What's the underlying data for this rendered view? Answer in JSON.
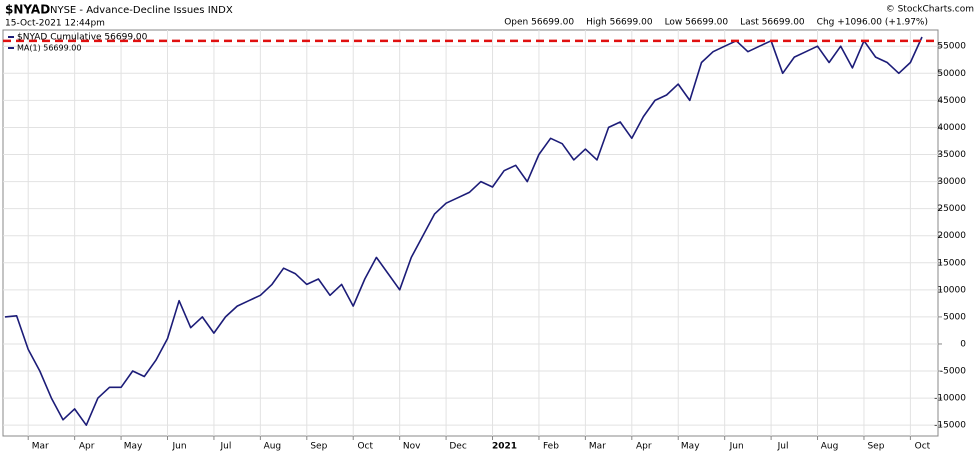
{
  "chart_data": {
    "type": "line",
    "symbol": "$NYAD",
    "title": "NYSE - Advance-Decline Issues INDX",
    "date": "15-Oct-2021 12:44pm",
    "quote": [
      "Open 56699.00",
      "High 56699.00",
      "Low 56699.00",
      "Last 56699.00",
      "Chg +1096.00 (+1.97%)"
    ],
    "credit": "© StockCharts.com",
    "legend_extra": "MA(1) 56699.00",
    "categories": [
      null,
      null,
      "Mar",
      null,
      null,
      null,
      "Apr",
      null,
      null,
      null,
      "May",
      null,
      null,
      null,
      "Jun",
      null,
      null,
      null,
      "Jul",
      null,
      null,
      null,
      "Aug",
      null,
      null,
      null,
      "Sep",
      null,
      null,
      null,
      "Oct",
      null,
      null,
      null,
      "Nov",
      null,
      null,
      null,
      "Dec",
      null,
      null,
      null,
      "2021",
      null,
      null,
      null,
      "Feb",
      null,
      null,
      null,
      "Mar",
      null,
      null,
      null,
      "Apr",
      null,
      null,
      null,
      "May",
      null,
      null,
      null,
      "Jun",
      null,
      null,
      null,
      "Jul",
      null,
      null,
      null,
      "Aug",
      null,
      null,
      null,
      "Sep",
      null,
      null,
      null,
      "Oct",
      null
    ],
    "series": [
      {
        "name": "$NYAD Cumulative 56699.00",
        "color": "#1c1c78",
        "values": [
          5000,
          5200,
          -1000,
          -5000,
          -10000,
          -14000,
          -12000,
          -15000,
          -10000,
          -8000,
          -8000,
          -5000,
          -6000,
          -3000,
          1000,
          8000,
          3000,
          5000,
          2000,
          5000,
          7000,
          8000,
          9000,
          11000,
          14000,
          13000,
          11000,
          12000,
          9000,
          11000,
          7000,
          12000,
          16000,
          13000,
          10000,
          16000,
          20000,
          24000,
          26000,
          27000,
          28000,
          30000,
          29000,
          32000,
          33000,
          30000,
          35000,
          38000,
          37000,
          34000,
          36000,
          34000,
          40000,
          41000,
          38000,
          42000,
          45000,
          46000,
          48000,
          45000,
          52000,
          54000,
          55000,
          56000,
          54000,
          55000,
          56000,
          50000,
          53000,
          54000,
          55000,
          52000,
          55000,
          51000,
          56000,
          53000,
          52000,
          50000,
          52000,
          56699
        ]
      }
    ],
    "reference_line": {
      "value": 56000,
      "color": "#e01010"
    },
    "ylim": [
      -17000,
      58000
    ],
    "yticks": [
      -15000,
      -10000,
      -5000,
      0,
      5000,
      10000,
      15000,
      20000,
      25000,
      30000,
      35000,
      40000,
      45000,
      50000,
      55000
    ],
    "grid": true
  }
}
